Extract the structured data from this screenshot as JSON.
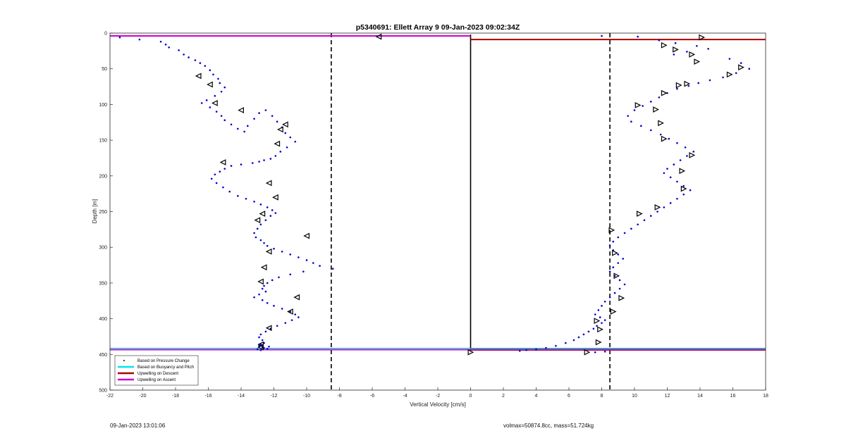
{
  "chart_data": {
    "type": "scatter",
    "title": "p5340691: Ellett Array 9 09-Jan-2023 09:02:34Z",
    "xlabel": "Vertical Velocity [cm/s]",
    "ylabel": "Depth [m]",
    "xlim": [
      -22,
      18
    ],
    "ylim": [
      0,
      500
    ],
    "y_reversed": true,
    "grid": false,
    "legend_position": "bottom-left",
    "x_ticks": [
      "-22",
      "-20",
      "-18",
      "-16",
      "-14",
      "-12",
      "-10",
      "-8",
      "-6",
      "-4",
      "-2",
      "0",
      "2",
      "4",
      "6",
      "8",
      "10",
      "12",
      "14",
      "16",
      "18"
    ],
    "y_ticks": [
      "0",
      "50",
      "100",
      "150",
      "200",
      "250",
      "300",
      "350",
      "400",
      "450",
      "500"
    ],
    "threshold_x": [
      -8.5,
      8.5
    ],
    "zero_x": 0,
    "series": [
      {
        "name": "Based on Pressure Change",
        "color": "#0000cc",
        "marker": "dot",
        "descent": {
          "x": [
            -21.4,
            -20.2,
            -18.9,
            -18.6,
            -18.4,
            -17.8,
            -17.5,
            -17.2,
            -16.8,
            -16.5,
            -16.2,
            -15.9,
            -15.7,
            -15.4,
            -15.3,
            -15.0,
            -15.2,
            -15.6,
            -16.1,
            -16.4,
            -15.9,
            -15.5,
            -15.2,
            -15.0,
            -14.6,
            -14.2,
            -13.8,
            -13.6,
            -13.2,
            -12.9,
            -12.5,
            -12.1,
            -11.8,
            -11.5,
            -11.3,
            -11.0,
            -10.7,
            -11.2,
            -11.6,
            -11.9,
            -12.2,
            -12.6,
            -12.9,
            -13.3,
            -14.0,
            -14.6,
            -15.0,
            -15.3,
            -15.6,
            -15.8,
            -15.5,
            -15.1,
            -14.7,
            -14.2,
            -13.7,
            -13.2,
            -12.8,
            -12.4,
            -12.1,
            -11.9,
            -12.2,
            -12.5,
            -12.8,
            -13.0,
            -13.2,
            -13.1,
            -12.8,
            -12.6,
            -12.4,
            -12.0,
            -11.5,
            -11.0,
            -10.5,
            -10.0,
            -9.6,
            -9.2,
            -8.4,
            -10.2,
            -11.0,
            -11.7,
            -12.1,
            -12.4,
            -12.6,
            -12.7,
            -12.5,
            -12.9,
            -13.2,
            -12.7,
            -12.4,
            -12.0,
            -11.5,
            -11.0,
            -10.7,
            -10.5,
            -10.9,
            -11.3,
            -11.8,
            -12.2,
            -12.5,
            -12.8,
            -12.9,
            -12.7,
            -12.6,
            -12.8,
            -12.9,
            -12.7,
            -12.4,
            -12.8,
            -13.0,
            -12.6,
            -12.3,
            -12.7
          ],
          "y": [
            6,
            9,
            12,
            16,
            20,
            24,
            30,
            34,
            38,
            42,
            46,
            52,
            58,
            64,
            70,
            76,
            82,
            88,
            94,
            98,
            104,
            110,
            116,
            122,
            128,
            134,
            138,
            130,
            120,
            112,
            108,
            116,
            124,
            132,
            140,
            146,
            152,
            160,
            166,
            172,
            176,
            178,
            180,
            182,
            184,
            186,
            190,
            194,
            198,
            204,
            210,
            216,
            222,
            228,
            232,
            236,
            240,
            244,
            248,
            252,
            256,
            262,
            268,
            274,
            280,
            286,
            290,
            294,
            298,
            302,
            306,
            310,
            314,
            318,
            322,
            326,
            330,
            334,
            338,
            342,
            346,
            350,
            354,
            358,
            362,
            366,
            370,
            374,
            378,
            382,
            386,
            390,
            394,
            398,
            402,
            406,
            410,
            414,
            418,
            422,
            426,
            430,
            434,
            436,
            438,
            440,
            442,
            444,
            443,
            441,
            439,
            437
          ]
        },
        "ascent": {
          "x": [
            8.0,
            10.2,
            11.5,
            12.5,
            13.8,
            14.5,
            13.2,
            12.4,
            15.8,
            16.5,
            17.0,
            16.2,
            15.4,
            14.6,
            13.9,
            13.3,
            12.6,
            12.0,
            11.5,
            11.0,
            10.5,
            10.0,
            9.6,
            9.8,
            10.4,
            11.0,
            11.6,
            12.1,
            12.6,
            13.1,
            13.6,
            13.2,
            12.8,
            12.4,
            12.0,
            11.8,
            12.2,
            12.6,
            13.0,
            13.4,
            13.0,
            12.6,
            12.2,
            11.8,
            11.4,
            11.0,
            10.6,
            10.2,
            9.8,
            9.4,
            9.0,
            8.7,
            8.5,
            8.7,
            9.0,
            9.3,
            9.0,
            8.7,
            8.5,
            8.8,
            9.1,
            9.4,
            9.1,
            8.8,
            8.5,
            8.2,
            8.0,
            7.8,
            7.6,
            7.9,
            8.2,
            8.0,
            7.7,
            7.5,
            7.2,
            6.9,
            6.6,
            6.3,
            5.8,
            5.2,
            4.6,
            4.0,
            3.4,
            3.0,
            8.2,
            7.6
          ],
          "y": [
            4,
            5,
            10,
            14,
            18,
            22,
            26,
            30,
            36,
            42,
            50,
            56,
            62,
            66,
            70,
            74,
            78,
            84,
            90,
            96,
            102,
            108,
            116,
            124,
            130,
            136,
            142,
            148,
            154,
            160,
            166,
            172,
            178,
            184,
            190,
            196,
            202,
            208,
            214,
            220,
            226,
            232,
            238,
            244,
            250,
            256,
            262,
            268,
            274,
            280,
            286,
            292,
            298,
            304,
            310,
            316,
            322,
            328,
            334,
            340,
            346,
            352,
            358,
            364,
            370,
            376,
            382,
            388,
            394,
            398,
            402,
            406,
            410,
            414,
            418,
            422,
            426,
            430,
            434,
            438,
            441,
            443,
            444,
            445,
            446,
            447
          ]
        }
      },
      {
        "name": "Based on Buoyancy and Pitch",
        "color": "#00e5ee",
        "marker": "triangle",
        "descent": {
          "x": [
            -5.6,
            -16.6,
            -15.9,
            -15.6,
            -14.0,
            -11.3,
            -11.6,
            -11.8,
            -15.1,
            -12.3,
            -11.9,
            -12.7,
            -13.0,
            -12.3,
            -10.0,
            -12.6,
            -12.8,
            -10.6,
            -11.0,
            -12.3,
            -12.8,
            -12.8
          ],
          "y": [
            5,
            60,
            72,
            98,
            108,
            128,
            135,
            155,
            181,
            210,
            230,
            253,
            262,
            306,
            284,
            328,
            348,
            370,
            390,
            413,
            436,
            440
          ]
        },
        "ascent": {
          "x": [
            14.1,
            11.8,
            12.5,
            13.5,
            13.8,
            16.5,
            15.8,
            13.2,
            12.7,
            11.8,
            10.2,
            11.3,
            11.6,
            11.8,
            13.5,
            12.9,
            13.0,
            11.4,
            10.3,
            8.6,
            8.8,
            8.9,
            9.2,
            8.7,
            7.7,
            7.9,
            7.8,
            7.1,
            0.0
          ],
          "y": [
            6,
            17,
            23,
            30,
            40,
            48,
            58,
            71,
            73,
            84,
            101,
            107,
            126,
            148,
            171,
            193,
            218,
            244,
            253,
            276,
            308,
            340,
            371,
            390,
            403,
            415,
            433,
            447,
            447
          ]
        }
      },
      {
        "name": "Upwelling on Descent",
        "color": "#b00000",
        "x": [
          0,
          18
        ],
        "y": [
          9,
          9
        ],
        "x2": [
          0,
          18
        ],
        "y2": [
          444,
          444
        ]
      },
      {
        "name": "Upwelling on Ascent",
        "color": "#cc00cc",
        "x": [
          -22,
          0
        ],
        "y": [
          4,
          4
        ],
        "x2": [
          -22,
          18
        ],
        "y2": [
          443.5,
          443.5
        ]
      }
    ],
    "extra_lines": [
      {
        "name": "",
        "color": "#00b5cc",
        "x": [
          -22,
          18
        ],
        "y": [
          441.5,
          441.5
        ]
      },
      {
        "name": "",
        "color": "#2aa840",
        "x": [
          0,
          18
        ],
        "y": [
          443,
          443
        ]
      }
    ]
  },
  "footer": {
    "timestamp": "09-Jan-2023 13:01:06",
    "specs": "volmax=50874.8cc, mass=51.724kg"
  }
}
